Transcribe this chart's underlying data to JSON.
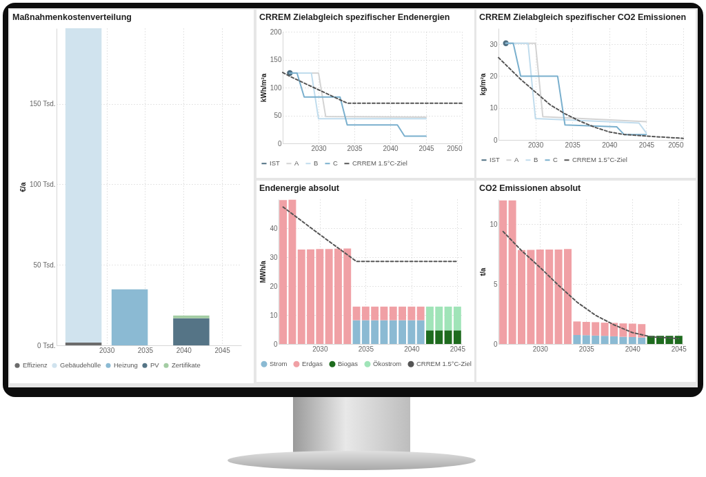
{
  "chart_data": [
    {
      "type": "bar",
      "title": "Maßnahmenkostenverteilung",
      "ylabel": "€/a",
      "stacked": true,
      "grid": true,
      "legend": "bottom",
      "x": [
        2027,
        2033,
        2041
      ],
      "xlim": [
        2023.5,
        2047.5
      ],
      "xticks": [
        2030,
        2035,
        2040,
        2045
      ],
      "ylim": [
        0,
        197
      ],
      "yticks": [
        {
          "value": 0,
          "label": "0 Tsd."
        },
        {
          "value": 50,
          "label": "50 Tsd."
        },
        {
          "value": 100,
          "label": "100 Tsd."
        },
        {
          "value": 150,
          "label": "150 Tsd."
        }
      ],
      "series": [
        {
          "name": "Effizienz",
          "color": "#6b6b6b",
          "values": [
            1.7,
            null,
            null
          ]
        },
        {
          "name": "Gebäudehülle",
          "color": "#d0e3ee",
          "values": [
            195.3,
            null,
            null
          ]
        },
        {
          "name": "Heizung",
          "color": "#8bbad3",
          "values": [
            null,
            34.8,
            null
          ]
        },
        {
          "name": "PV",
          "color": "#557486",
          "values": [
            null,
            null,
            16.8
          ]
        },
        {
          "name": "Zertifikate",
          "color": "#a3cca3",
          "values": [
            null,
            null,
            1.7
          ]
        }
      ]
    },
    {
      "type": "line",
      "title": "CRREM Zielabgleich spezifischer Endenergien",
      "ylabel": "kWh/m²a",
      "grid": true,
      "legend": "bottom",
      "xlim": [
        2025,
        2050
      ],
      "xticks": [
        2030,
        2035,
        2040,
        2045,
        2050
      ],
      "ylim": [
        0,
        200
      ],
      "yticks": [
        0,
        50,
        100,
        150,
        200
      ],
      "series": [
        {
          "name": "IST",
          "color": "#4f6f82",
          "marker": "circle",
          "x": [
            2026
          ],
          "values": [
            126
          ]
        },
        {
          "name": "A",
          "color": "#d3d3d3",
          "x": [
            2026,
            2030,
            2031,
            2045
          ],
          "values": [
            126,
            126,
            48,
            47
          ]
        },
        {
          "name": "B",
          "color": "#c0dced",
          "x": [
            2026,
            2029,
            2030,
            2045
          ],
          "values": [
            126,
            126,
            44,
            44
          ]
        },
        {
          "name": "C",
          "color": "#79afcd",
          "x": [
            2026,
            2027,
            2028,
            2033,
            2034,
            2041,
            2042,
            2045
          ],
          "values": [
            126,
            126,
            83,
            83,
            33,
            33,
            13,
            13
          ]
        },
        {
          "name": "CRREM 1.5°C-Ziel",
          "color": "#555555",
          "line_style": "dashed",
          "x": [
            2025,
            2026,
            2030,
            2034,
            2050
          ],
          "values": [
            127,
            120,
            96,
            72,
            72
          ]
        }
      ]
    },
    {
      "type": "line",
      "title": "CRREM Zielabgleich spezifischer CO2 Emissionen",
      "ylabel": "kg/m²a",
      "grid": true,
      "legend": "bottom",
      "xlim": [
        2025,
        2050
      ],
      "xticks": [
        2030,
        2035,
        2040,
        2045,
        2050
      ],
      "ylim": [
        0,
        35
      ],
      "yticks": [
        0,
        10,
        20,
        30
      ],
      "series": [
        {
          "name": "IST",
          "color": "#4f6f82",
          "marker": "circle",
          "x": [
            2026
          ],
          "values": [
            30.3
          ]
        },
        {
          "name": "A",
          "color": "#d3d3d3",
          "x": [
            2026,
            2030,
            2031,
            2045
          ],
          "values": [
            30.3,
            30.3,
            7.3,
            5.7
          ]
        },
        {
          "name": "B",
          "color": "#c0dced",
          "x": [
            2026,
            2029,
            2030,
            2044,
            2045
          ],
          "values": [
            30.3,
            30.3,
            6.7,
            5.3,
            2.2
          ]
        },
        {
          "name": "C",
          "color": "#79afcd",
          "x": [
            2026,
            2027,
            2028,
            2033,
            2034,
            2041,
            2042,
            2045
          ],
          "values": [
            30.3,
            30.3,
            20,
            20,
            4.7,
            4.1,
            1.7,
            1.7
          ]
        },
        {
          "name": "CRREM 1.5°C-Ziel",
          "color": "#555555",
          "line_style": "dashed",
          "x": [
            2025,
            2028,
            2030,
            2032,
            2034,
            2036,
            2038,
            2040,
            2042,
            2045,
            2050
          ],
          "values": [
            25.8,
            19,
            15,
            11,
            8.2,
            5.9,
            4,
            2.5,
            1.7,
            1.2,
            0.5
          ]
        }
      ]
    },
    {
      "type": "bar",
      "title": "Endenergie absolut",
      "ylabel": "MWh/a",
      "stacked": true,
      "grid": true,
      "legend": "bottom",
      "x": [
        2026,
        2027,
        2028,
        2029,
        2030,
        2031,
        2032,
        2033,
        2034,
        2035,
        2036,
        2037,
        2038,
        2039,
        2040,
        2041,
        2042,
        2043,
        2044,
        2045
      ],
      "xlim": [
        2025.5,
        2045.5
      ],
      "xticks": [
        2030,
        2035,
        2040,
        2045
      ],
      "ylim": [
        0,
        50
      ],
      "yticks": [
        0,
        10,
        20,
        30,
        40
      ],
      "series": [
        {
          "name": "Strom",
          "color": "#8bbad3",
          "values": [
            null,
            null,
            null,
            null,
            null,
            null,
            null,
            null,
            8.2,
            8.2,
            8.2,
            8.2,
            8.2,
            8.2,
            8.2,
            8.2,
            null,
            null,
            null,
            null
          ]
        },
        {
          "name": "Erdgas",
          "color": "#f0a0a5",
          "values": [
            49.7,
            49.8,
            32.6,
            32.7,
            32.8,
            32.8,
            32.9,
            33.0,
            4.7,
            4.7,
            4.7,
            4.7,
            4.7,
            4.7,
            4.7,
            4.7,
            null,
            null,
            null,
            null
          ]
        },
        {
          "name": "Biogas",
          "color": "#1e6b1e",
          "values": [
            null,
            null,
            null,
            null,
            null,
            null,
            null,
            null,
            null,
            null,
            null,
            null,
            null,
            null,
            null,
            null,
            4.7,
            4.7,
            4.7,
            4.7
          ]
        },
        {
          "name": "Ökostrom",
          "color": "#a0e4b8",
          "values": [
            null,
            null,
            null,
            null,
            null,
            null,
            null,
            null,
            null,
            null,
            null,
            null,
            null,
            null,
            null,
            null,
            8.2,
            8.2,
            8.2,
            8.2
          ]
        },
        {
          "name": "CRREM 1.5°C-Ziel",
          "color": "#555555",
          "type": "line",
          "line_style": "dashed",
          "x": [
            2026,
            2030,
            2034,
            2045
          ],
          "values": [
            47.3,
            37.8,
            28.5,
            28.5
          ]
        }
      ]
    },
    {
      "type": "bar",
      "title": "CO2 Emissionen absolut",
      "ylabel": "t/a",
      "stacked": true,
      "grid": true,
      "x": [
        2026,
        2027,
        2028,
        2029,
        2030,
        2031,
        2032,
        2033,
        2034,
        2035,
        2036,
        2037,
        2038,
        2039,
        2040,
        2041,
        2042,
        2043,
        2044,
        2045
      ],
      "xlim": [
        2025.5,
        2045.5
      ],
      "xticks": [
        2030,
        2035,
        2040,
        2045
      ],
      "ylim": [
        0,
        12.1
      ],
      "yticks": [
        0,
        5,
        10
      ],
      "series": [
        {
          "color": "#8bbad3",
          "values": [
            null,
            null,
            null,
            null,
            null,
            null,
            null,
            null,
            0.75,
            0.73,
            0.7,
            0.68,
            0.64,
            0.6,
            0.58,
            0.54,
            null,
            null,
            null,
            null
          ]
        },
        {
          "color": "#f0a0a5",
          "values": [
            12.0,
            12.0,
            7.85,
            7.87,
            7.9,
            7.9,
            7.9,
            7.93,
            1.13,
            1.11,
            1.12,
            1.1,
            1.12,
            1.12,
            1.12,
            1.12,
            null,
            null,
            null,
            null
          ]
        },
        {
          "color": "#1e6b1e",
          "values": [
            null,
            null,
            null,
            null,
            null,
            null,
            null,
            null,
            null,
            null,
            null,
            null,
            null,
            null,
            null,
            null,
            0.68,
            0.68,
            0.68,
            0.68
          ]
        },
        {
          "color": "#555555",
          "type": "line",
          "line_style": "dashed",
          "x": [
            2026,
            2028,
            2030,
            2032,
            2034,
            2036,
            2038,
            2040,
            2042,
            2045
          ],
          "values": [
            9.4,
            7.8,
            6.4,
            4.9,
            3.5,
            2.4,
            1.6,
            0.95,
            0.6,
            0.45
          ]
        }
      ]
    }
  ]
}
